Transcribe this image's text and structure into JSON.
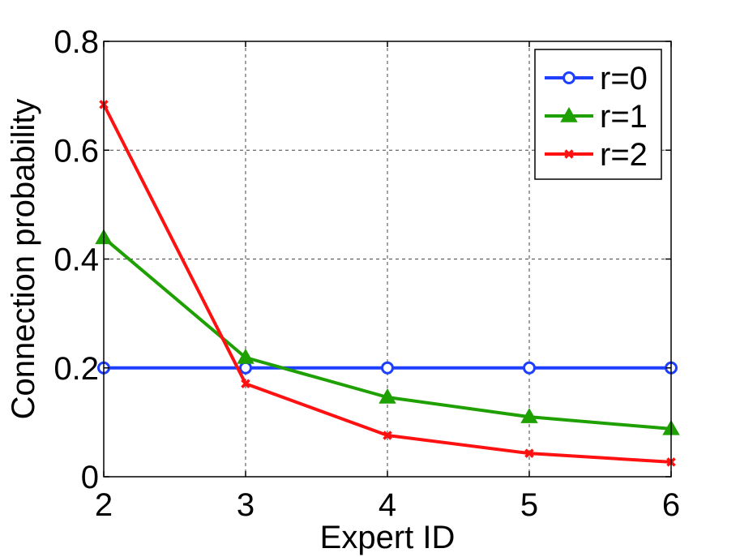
{
  "chart_data": {
    "type": "line",
    "x": [
      2,
      3,
      4,
      5,
      6
    ],
    "xlabel": "Expert ID",
    "ylabel": "Connection probability",
    "xlim": [
      2,
      6
    ],
    "ylim": [
      0,
      0.8
    ],
    "xticks": [
      "2",
      "3",
      "4",
      "5",
      "6"
    ],
    "yticks": [
      "0",
      "0.2",
      "0.4",
      "0.6",
      "0.8"
    ],
    "grid": true,
    "legend_position": "top-right",
    "series": [
      {
        "name": "r=0",
        "color": "#1f3fff",
        "marker": "circle",
        "values": [
          0.2,
          0.2,
          0.2,
          0.2,
          0.2
        ]
      },
      {
        "name": "r=1",
        "color": "#1ea000",
        "marker": "triangle",
        "values": [
          0.439,
          0.219,
          0.146,
          0.11,
          0.088
        ]
      },
      {
        "name": "r=2",
        "color": "#ff1111",
        "marker": "x",
        "values": [
          0.684,
          0.171,
          0.076,
          0.043,
          0.027
        ]
      }
    ]
  }
}
